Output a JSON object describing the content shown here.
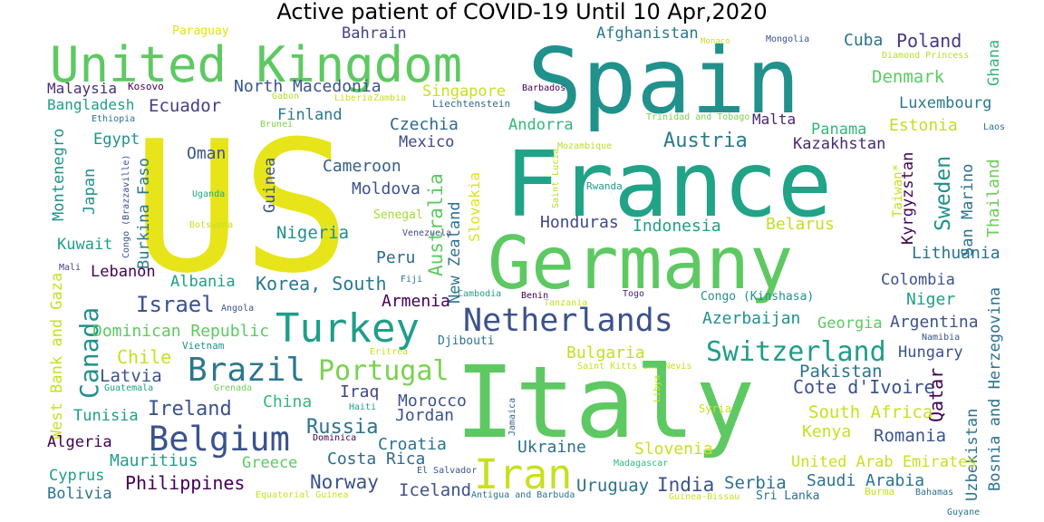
{
  "title": "Active patient of COVID-19 Until 10 Apr,2020",
  "words": [
    {
      "text": "Paraguay",
      "color": "#dde318"
    },
    {
      "text": "United Kingdom",
      "color": "#5ec962"
    },
    {
      "text": "Spain",
      "color": "#21918c"
    },
    {
      "text": "Afghanistan",
      "color": "#2a788e"
    },
    {
      "text": "Monaco",
      "color": "#c2df23"
    },
    {
      "text": "Mongolia",
      "color": "#3b528b"
    },
    {
      "text": "Cuba",
      "color": "#2c728e"
    },
    {
      "text": "Poland",
      "color": "#443983"
    },
    {
      "text": "Ghana",
      "color": "#35b779"
    },
    {
      "text": "Diamond Princess",
      "color": "#b5de2b"
    },
    {
      "text": "Bahrain",
      "color": "#414487"
    },
    {
      "text": "Malaysia",
      "color": "#472d7b"
    },
    {
      "text": "Kosovo",
      "color": "#440154"
    },
    {
      "text": "North Macedonia",
      "color": "#3b528b"
    },
    {
      "text": "Singapore",
      "color": "#c8e020"
    },
    {
      "text": "Barbados",
      "color": "#440154"
    },
    {
      "text": "Denmark",
      "color": "#5ec962"
    },
    {
      "text": "Bangladesh",
      "color": "#1f9e89"
    },
    {
      "text": "Ecuador",
      "color": "#433e85"
    },
    {
      "text": "Gabon",
      "color": "#b5de2b"
    },
    {
      "text": "Liberia",
      "color": "#c8e020"
    },
    {
      "text": "Zambia",
      "color": "#c2df23"
    },
    {
      "text": "Liechtenstein",
      "color": "#31688e"
    },
    {
      "text": "Luxembourg",
      "color": "#2a788e"
    },
    {
      "text": "Ethiopia",
      "color": "#2c728e"
    },
    {
      "text": "Brunei",
      "color": "#7ad151"
    },
    {
      "text": "Finland",
      "color": "#2a788e"
    },
    {
      "text": "Andorra",
      "color": "#35b779"
    },
    {
      "text": "Trinidad and Tobago",
      "color": "#7ad151"
    },
    {
      "text": "Malta",
      "color": "#482475"
    },
    {
      "text": "Panama",
      "color": "#35b779"
    },
    {
      "text": "Estonia",
      "color": "#c2df23"
    },
    {
      "text": "Laos",
      "color": "#2c728e"
    },
    {
      "text": "Montenegro",
      "color": "#21918c"
    },
    {
      "text": "Czechia",
      "color": "#31688e"
    },
    {
      "text": "Egypt",
      "color": "#21918c"
    },
    {
      "text": "US",
      "color": "#e7e419"
    },
    {
      "text": "Mexico",
      "color": "#3e4989"
    },
    {
      "text": "Austria",
      "color": "#2a788e"
    },
    {
      "text": "Kazakhstan",
      "color": "#482878"
    },
    {
      "text": "Sweden",
      "color": "#21918c"
    },
    {
      "text": "Tunisia",
      "color": "#1f9e89"
    },
    {
      "text": "Oman",
      "color": "#3b528b"
    },
    {
      "text": "Mozambique",
      "color": "#b5de2b"
    },
    {
      "text": "France",
      "color": "#20a386"
    },
    {
      "text": "Thailand",
      "color": "#6ece58"
    },
    {
      "text": "Cameroon",
      "color": "#355f8d"
    },
    {
      "text": "Japan",
      "color": "#21918c"
    },
    {
      "text": "Congo (Brazzaville)",
      "color": "#3b528b"
    },
    {
      "text": "Burkina Faso",
      "color": "#2a788e"
    },
    {
      "text": "Guinea",
      "color": "#3b528b"
    },
    {
      "text": "Saint Lucia",
      "color": "#b5de2b"
    },
    {
      "text": "Rwanda",
      "color": "#1f9e89"
    },
    {
      "text": "Taiwan*",
      "color": "#c8e020"
    },
    {
      "text": "Kyrgyzstan",
      "color": "#440154"
    },
    {
      "text": "San Marino",
      "color": "#2c728e"
    },
    {
      "text": "Uganda",
      "color": "#22a884"
    },
    {
      "text": "Moldova",
      "color": "#3b528b"
    },
    {
      "text": "Slovakia",
      "color": "#dde318"
    },
    {
      "text": "Senegal",
      "color": "#a5db36"
    },
    {
      "text": "Botswana",
      "color": "#c8e020"
    },
    {
      "text": "Venezuela",
      "color": "#404688"
    },
    {
      "text": "Honduras",
      "color": "#3e4989"
    },
    {
      "text": "Indonesia",
      "color": "#1f9e89"
    },
    {
      "text": "Belarus",
      "color": "#c2df23"
    },
    {
      "text": "Nigeria",
      "color": "#228d8d"
    },
    {
      "text": "Kuwait",
      "color": "#1f9e89"
    },
    {
      "text": "Australia",
      "color": "#5ec962"
    },
    {
      "text": "New Zealand",
      "color": "#2c728e"
    },
    {
      "text": "Germany",
      "color": "#5ec962"
    },
    {
      "text": "Lithuania",
      "color": "#2c728e"
    },
    {
      "text": "Mali",
      "color": "#404688"
    },
    {
      "text": "Lebanon",
      "color": "#440154"
    },
    {
      "text": "Peru",
      "color": "#31688e"
    },
    {
      "text": "Fiji",
      "color": "#2c728e"
    },
    {
      "text": "Albania",
      "color": "#1f9e89"
    },
    {
      "text": "Korea, South",
      "color": "#2a788e"
    },
    {
      "text": "Colombia",
      "color": "#3b528b"
    },
    {
      "text": "West Bank and Gaza",
      "color": "#c8e020"
    },
    {
      "text": "Canada",
      "color": "#21918c"
    },
    {
      "text": "Israel",
      "color": "#3b528b"
    },
    {
      "text": "Angola",
      "color": "#3b528b"
    },
    {
      "text": "Armenia",
      "color": "#440154"
    },
    {
      "text": "Cambodia",
      "color": "#1f9e89"
    },
    {
      "text": "Benin",
      "color": "#440154"
    },
    {
      "text": "Tanzania",
      "color": "#c8e020"
    },
    {
      "text": "Togo",
      "color": "#482475"
    },
    {
      "text": "Congo (Kinshasa)",
      "color": "#21918c"
    },
    {
      "text": "Niger",
      "color": "#1f9e89"
    },
    {
      "text": "Bosnia and Herzegovina",
      "color": "#2c728e"
    },
    {
      "text": "Turkey",
      "color": "#1f9e89"
    },
    {
      "text": "Netherlands",
      "color": "#3b528b"
    },
    {
      "text": "Azerbaijan",
      "color": "#21918c"
    },
    {
      "text": "Georgia",
      "color": "#5ec962"
    },
    {
      "text": "Argentina",
      "color": "#3b528b"
    },
    {
      "text": "Dominican Republic",
      "color": "#5ec962"
    },
    {
      "text": "Vietnam",
      "color": "#21918c"
    },
    {
      "text": "Djibouti",
      "color": "#2c728e"
    },
    {
      "text": "Namibia",
      "color": "#3b528b"
    },
    {
      "text": "Chile",
      "color": "#c8e020"
    },
    {
      "text": "Eritrea",
      "color": "#c8e020"
    },
    {
      "text": "Bulgaria",
      "color": "#c2df23"
    },
    {
      "text": "Switzerland",
      "color": "#1f9e89"
    },
    {
      "text": "Hungary",
      "color": "#3b528b"
    },
    {
      "text": "Brazil",
      "color": "#2a788e"
    },
    {
      "text": "Portugal",
      "color": "#7ad151"
    },
    {
      "text": "Latvia",
      "color": "#3b528b"
    },
    {
      "text": "Guatemala",
      "color": "#1f9e89"
    },
    {
      "text": "Grenada",
      "color": "#6ece58"
    },
    {
      "text": "Saint Kitts and Nevis",
      "color": "#c8e020"
    },
    {
      "text": "Pakistan",
      "color": "#2c728e"
    },
    {
      "text": "Italy",
      "color": "#5ec962"
    },
    {
      "text": "Ireland",
      "color": "#3b528b"
    },
    {
      "text": "China",
      "color": "#35b779"
    },
    {
      "text": "Iraq",
      "color": "#404688"
    },
    {
      "text": "Morocco",
      "color": "#3b528b"
    },
    {
      "text": "Libya",
      "color": "#c8e020"
    },
    {
      "text": "Syria",
      "color": "#c8e020"
    },
    {
      "text": "Cote d'Ivoire",
      "color": "#3b528b"
    },
    {
      "text": "Qatar",
      "color": "#440154"
    },
    {
      "text": "Haiti",
      "color": "#1f9e89"
    },
    {
      "text": "Jordan",
      "color": "#3b528b"
    },
    {
      "text": "Jamaica",
      "color": "#31688e"
    },
    {
      "text": "South Africa",
      "color": "#c8e020"
    },
    {
      "text": "Uzbekistan",
      "color": "#2c728e"
    },
    {
      "text": "Russia",
      "color": "#2c728e"
    },
    {
      "text": "Belgium",
      "color": "#3b528b"
    },
    {
      "text": "Kenya",
      "color": "#c8e020"
    },
    {
      "text": "Romania",
      "color": "#3b528b"
    },
    {
      "text": "Algeria",
      "color": "#440154"
    },
    {
      "text": "Dominica",
      "color": "#440154"
    },
    {
      "text": "Croatia",
      "color": "#2c728e"
    },
    {
      "text": "Ukraine",
      "color": "#2c728e"
    },
    {
      "text": "Slovenia",
      "color": "#c8e020"
    },
    {
      "text": "Mauritius",
      "color": "#1f9e89"
    },
    {
      "text": "Greece",
      "color": "#5ec962"
    },
    {
      "text": "Costa Rica",
      "color": "#31688e"
    },
    {
      "text": "Iran",
      "color": "#c8e020"
    },
    {
      "text": "Madagascar",
      "color": "#35b779"
    },
    {
      "text": "United Arab Emirates",
      "color": "#c8e020"
    },
    {
      "text": "El Salvador",
      "color": "#3b528b"
    },
    {
      "text": "Cyprus",
      "color": "#1f9e89"
    },
    {
      "text": "Philippines",
      "color": "#440154"
    },
    {
      "text": "Norway",
      "color": "#3b528b"
    },
    {
      "text": "Uruguay",
      "color": "#2c728e"
    },
    {
      "text": "India",
      "color": "#3b528b"
    },
    {
      "text": "Serbia",
      "color": "#2c728e"
    },
    {
      "text": "Saudi Arabia",
      "color": "#2c728e"
    },
    {
      "text": "Bolivia",
      "color": "#2c728e"
    },
    {
      "text": "Equatorial Guinea",
      "color": "#c8e020"
    },
    {
      "text": "Iceland",
      "color": "#3b528b"
    },
    {
      "text": "Antigua and Barbuda",
      "color": "#2c728e"
    },
    {
      "text": "Guinea-Bissau",
      "color": "#c8e020"
    },
    {
      "text": "Sri Lanka",
      "color": "#2c728e"
    },
    {
      "text": "Burma",
      "color": "#c8e020"
    },
    {
      "text": "Bahamas",
      "color": "#2c728e"
    },
    {
      "text": "Guyane",
      "color": "#2c728e"
    }
  ]
}
